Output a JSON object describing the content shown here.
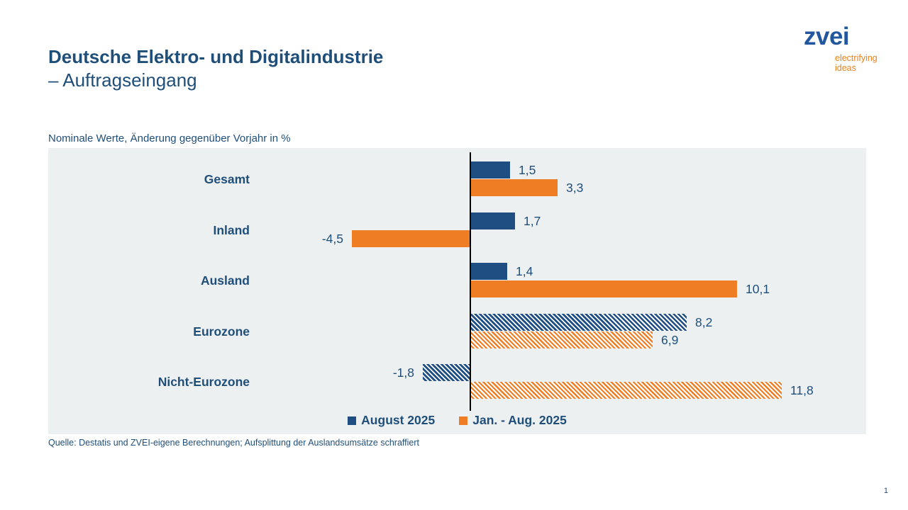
{
  "header": {
    "title_line1": "Deutsche Elektro- und Digitalindustrie",
    "title_line2": "– Auftragseingang"
  },
  "logo": {
    "brand": "zvei",
    "tagline_line1": "electrifying",
    "tagline_line2": "ideas"
  },
  "colors": {
    "text_blue": "#1F4E79",
    "bar_blue": "#1E4E82",
    "bar_orange": "#EE7D23",
    "logo_blue": "#2257A0",
    "logo_orange": "#E8821E",
    "plot_background": "#EDF0F1",
    "axis_line": "#000000"
  },
  "chart_data": {
    "type": "bar",
    "orientation": "horizontal",
    "title": "Nominale Werte, Änderung gegenüber Vorjahr in %",
    "categories": [
      "Gesamt",
      "Inland",
      "Ausland",
      "Eurozone",
      "Nicht-Eurozone"
    ],
    "series": [
      {
        "name": "August 2025",
        "color": "#1E4E82",
        "values": [
          1.5,
          1.7,
          1.4,
          8.2,
          -1.8
        ],
        "labels": [
          "1,5",
          "1,7",
          "1,4",
          "8,2",
          "-1,8"
        ]
      },
      {
        "name": "Jan. - Aug. 2025",
        "color": "#EE7D23",
        "values": [
          3.3,
          -4.5,
          10.1,
          6.9,
          11.8
        ],
        "labels": [
          "3,3",
          "-4,5",
          "10,1",
          "6,9",
          "11,8"
        ]
      }
    ],
    "hatched": [
      false,
      false,
      false,
      true,
      true
    ],
    "xlim": [
      -16,
      15
    ],
    "grid": false,
    "legend_position": "bottom"
  },
  "footer": {
    "source": "Quelle: Destatis und ZVEI-eigene Berechnungen; Aufsplittung der Auslandsumsätze schraffiert",
    "page_number": "1"
  }
}
